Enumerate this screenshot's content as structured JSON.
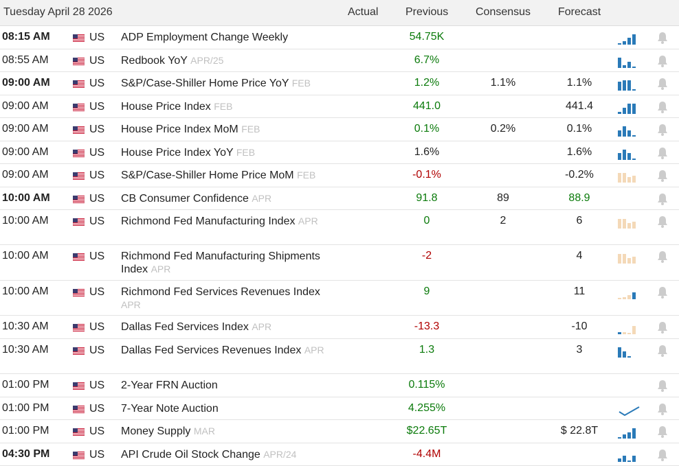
{
  "header": {
    "date": "Tuesday April 28 2026",
    "col_actual": "Actual",
    "col_previous": "Previous",
    "col_consensus": "Consensus",
    "col_forecast": "Forecast"
  },
  "colors": {
    "up": "#0a7a0a",
    "down": "#b00000",
    "spark_blue": "#2a7ab8",
    "spark_peach": "#f4d9b8",
    "bell": "#cccccc"
  },
  "rows": [
    {
      "time": "08:15 AM",
      "bold": true,
      "country": "US",
      "event": "ADP Employment Change Weekly",
      "period": "",
      "actual": "",
      "previous": "54.75K",
      "prev_color": "up",
      "consensus": "",
      "forecast": "",
      "forecast_color": "neutral",
      "spark": "blue",
      "spark_icon": "bar-chart-icon"
    },
    {
      "time": "08:55 AM",
      "bold": false,
      "country": "US",
      "event": "Redbook YoY",
      "period": "APR/25",
      "actual": "",
      "previous": "6.7%",
      "prev_color": "up",
      "consensus": "",
      "forecast": "",
      "forecast_color": "neutral",
      "spark": "blue",
      "spark_icon": "bar-chart-icon"
    },
    {
      "time": "09:00 AM",
      "bold": true,
      "country": "US",
      "event": "S&P/Case-Shiller Home Price YoY",
      "period": "FEB",
      "actual": "",
      "previous": "1.2%",
      "prev_color": "up",
      "consensus": "1.1%",
      "forecast": "1.1%",
      "forecast_color": "neutral",
      "spark": "blue",
      "spark_icon": "bar-chart-icon"
    },
    {
      "time": "09:00 AM",
      "bold": false,
      "country": "US",
      "event": "House Price Index",
      "period": "FEB",
      "actual": "",
      "previous": "441.0",
      "prev_color": "up",
      "consensus": "",
      "forecast": "441.4",
      "forecast_color": "neutral",
      "spark": "blue",
      "spark_icon": "bar-chart-icon"
    },
    {
      "time": "09:00 AM",
      "bold": false,
      "country": "US",
      "event": "House Price Index MoM",
      "period": "FEB",
      "actual": "",
      "previous": "0.1%",
      "prev_color": "up",
      "consensus": "0.2%",
      "forecast": "0.1%",
      "forecast_color": "neutral",
      "spark": "blue",
      "spark_icon": "bar-chart-icon"
    },
    {
      "time": "09:00 AM",
      "bold": false,
      "country": "US",
      "event": "House Price Index YoY",
      "period": "FEB",
      "actual": "",
      "previous": "1.6%",
      "prev_color": "neutral",
      "consensus": "",
      "forecast": "1.6%",
      "forecast_color": "neutral",
      "spark": "blue",
      "spark_icon": "bar-chart-icon"
    },
    {
      "time": "09:00 AM",
      "bold": false,
      "country": "US",
      "event": "S&P/Case-Shiller Home Price MoM",
      "period": "FEB",
      "actual": "",
      "previous": "-0.1%",
      "prev_color": "down",
      "consensus": "",
      "forecast": "-0.2%",
      "forecast_color": "neutral",
      "spark": "peach",
      "spark_icon": "bar-chart-icon"
    },
    {
      "time": "10:00 AM",
      "bold": true,
      "country": "US",
      "event": "CB Consumer Confidence",
      "period": "APR",
      "actual": "",
      "previous": "91.8",
      "prev_color": "up",
      "consensus": "89",
      "forecast": "88.9",
      "forecast_color": "up",
      "spark": "none",
      "spark_icon": ""
    },
    {
      "time": "10:00 AM",
      "bold": false,
      "country": "US",
      "event": "Richmond Fed Manufacturing Index",
      "period": "APR",
      "actual": "",
      "previous": "0",
      "prev_color": "up",
      "consensus": "2",
      "forecast": "6",
      "forecast_color": "neutral",
      "spark": "peach",
      "spark_icon": "bar-chart-icon"
    },
    {
      "time": "10:00 AM",
      "bold": false,
      "country": "US",
      "event": "Richmond Fed Manufacturing Shipments Index",
      "period": "APR",
      "actual": "",
      "previous": "-2",
      "prev_color": "down",
      "consensus": "",
      "forecast": "4",
      "forecast_color": "neutral",
      "spark": "peach",
      "spark_icon": "bar-chart-icon"
    },
    {
      "time": "10:00 AM",
      "bold": false,
      "country": "US",
      "event": "Richmond Fed Services Revenues Index",
      "period": "APR",
      "actual": "",
      "previous": "9",
      "prev_color": "up",
      "consensus": "",
      "forecast": "11",
      "forecast_color": "neutral",
      "spark": "mixed",
      "spark_icon": "bar-chart-icon"
    },
    {
      "time": "10:30 AM",
      "bold": false,
      "country": "US",
      "event": "Dallas Fed Services Index",
      "period": "APR",
      "actual": "",
      "previous": "-13.3",
      "prev_color": "down",
      "consensus": "",
      "forecast": "-10",
      "forecast_color": "neutral",
      "spark": "mixed2",
      "spark_icon": "bar-chart-icon"
    },
    {
      "time": "10:30 AM",
      "bold": false,
      "country": "US",
      "event": "Dallas Fed Services Revenues Index",
      "period": "APR",
      "actual": "",
      "previous": "1.3",
      "prev_color": "up",
      "consensus": "",
      "forecast": "3",
      "forecast_color": "neutral",
      "spark": "blue",
      "spark_icon": "bar-chart-icon"
    },
    {
      "time": "01:00 PM",
      "bold": false,
      "country": "US",
      "event": "2-Year FRN Auction",
      "period": "",
      "actual": "",
      "previous": "0.115%",
      "prev_color": "up",
      "consensus": "",
      "forecast": "",
      "forecast_color": "neutral",
      "spark": "none",
      "spark_icon": ""
    },
    {
      "time": "01:00 PM",
      "bold": false,
      "country": "US",
      "event": "7-Year Note Auction",
      "period": "",
      "actual": "",
      "previous": "4.255%",
      "prev_color": "up",
      "consensus": "",
      "forecast": "",
      "forecast_color": "neutral",
      "spark": "line",
      "spark_icon": "line-chart-icon"
    },
    {
      "time": "01:00 PM",
      "bold": false,
      "country": "US",
      "event": "Money Supply",
      "period": "MAR",
      "actual": "",
      "previous": "$22.65T",
      "prev_color": "up",
      "consensus": "",
      "forecast": "$ 22.8T",
      "forecast_color": "neutral",
      "spark": "blue",
      "spark_icon": "bar-chart-icon"
    },
    {
      "time": "04:30 PM",
      "bold": true,
      "country": "US",
      "event": "API Crude Oil Stock Change",
      "period": "APR/24",
      "actual": "",
      "previous": "-4.4M",
      "prev_color": "down",
      "consensus": "",
      "forecast": "",
      "forecast_color": "neutral",
      "spark": "blue",
      "spark_icon": "bar-chart-icon"
    }
  ]
}
